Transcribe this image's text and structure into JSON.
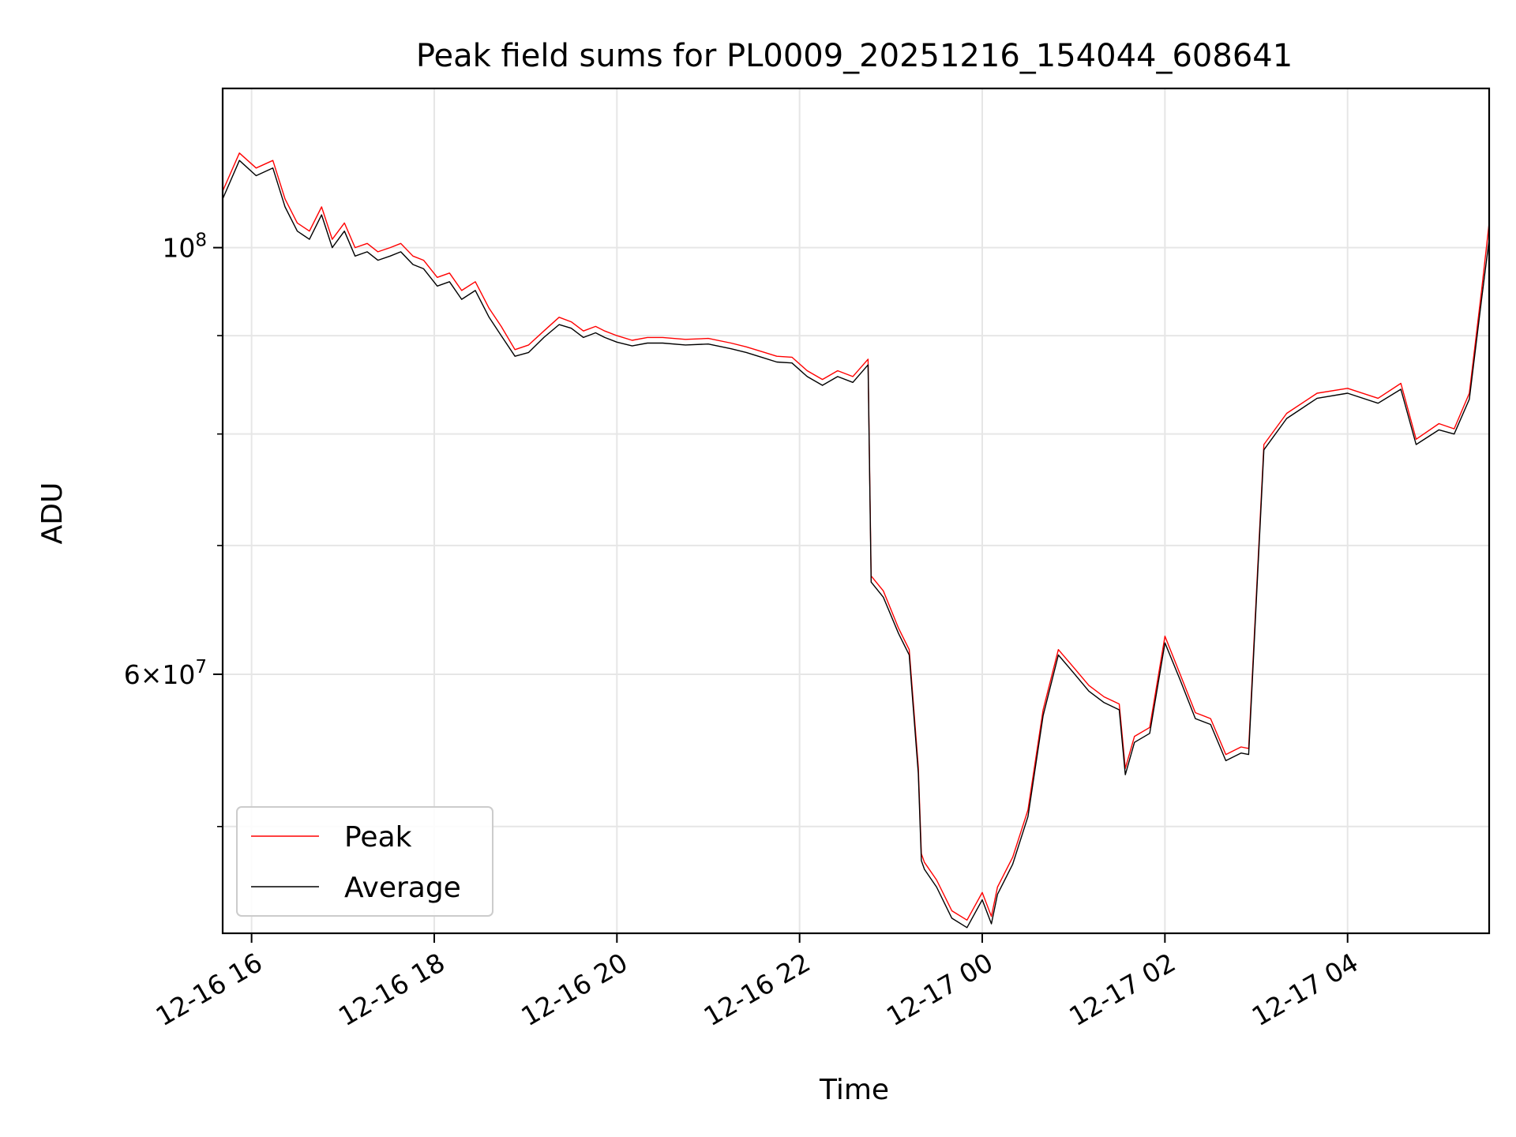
{
  "chart_data": {
    "type": "line",
    "title": "Peak field sums for PL0009_20251216_154044_608641",
    "xlabel": "Time",
    "ylabel": "ADU",
    "y_scale": "log",
    "ylim": [
      44000000,
      121000000
    ],
    "xlim": [
      "2025-12-16 15:41",
      "2025-12-17 05:33"
    ],
    "grid": true,
    "legend_position": "lower-left",
    "x_ticks": [
      {
        "value": "2025-12-16 16:00",
        "label": "12-16 16"
      },
      {
        "value": "2025-12-16 18:00",
        "label": "12-16 18"
      },
      {
        "value": "2025-12-16 20:00",
        "label": "12-16 20"
      },
      {
        "value": "2025-12-16 22:00",
        "label": "12-16 22"
      },
      {
        "value": "2025-12-17 00:00",
        "label": "12-17 00"
      },
      {
        "value": "2025-12-17 02:00",
        "label": "12-17 02"
      },
      {
        "value": "2025-12-17 04:00",
        "label": "12-17 04"
      }
    ],
    "y_major_ticks": [
      {
        "value": 60000000,
        "mantissa": "6",
        "exponent": "7"
      },
      {
        "value": 100000000,
        "mantissa": "",
        "exponent": "8"
      }
    ],
    "y_minor_ticks": [
      50000000,
      70000000,
      80000000,
      90000000
    ],
    "series": [
      {
        "name": "Peak",
        "color": "#ff0000",
        "x": [
          "2025-12-16 15:41",
          "2025-12-16 15:52",
          "2025-12-16 16:03",
          "2025-12-16 16:14",
          "2025-12-16 16:22",
          "2025-12-16 16:30",
          "2025-12-16 16:38",
          "2025-12-16 16:46",
          "2025-12-16 16:53",
          "2025-12-16 17:01",
          "2025-12-16 17:08",
          "2025-12-16 17:16",
          "2025-12-16 17:23",
          "2025-12-16 17:31",
          "2025-12-16 17:38",
          "2025-12-16 17:46",
          "2025-12-16 17:53",
          "2025-12-16 18:02",
          "2025-12-16 18:10",
          "2025-12-16 18:18",
          "2025-12-16 18:27",
          "2025-12-16 18:36",
          "2025-12-16 18:44",
          "2025-12-16 18:53",
          "2025-12-16 19:02",
          "2025-12-16 19:12",
          "2025-12-16 19:22",
          "2025-12-16 19:30",
          "2025-12-16 19:38",
          "2025-12-16 19:46",
          "2025-12-16 19:52",
          "2025-12-16 20:00",
          "2025-12-16 20:10",
          "2025-12-16 20:20",
          "2025-12-16 20:30",
          "2025-12-16 20:45",
          "2025-12-16 21:00",
          "2025-12-16 21:15",
          "2025-12-16 21:25",
          "2025-12-16 21:35",
          "2025-12-16 21:45",
          "2025-12-16 21:55",
          "2025-12-16 22:05",
          "2025-12-16 22:15",
          "2025-12-16 22:25",
          "2025-12-16 22:35",
          "2025-12-16 22:45",
          "2025-12-16 22:47",
          "2025-12-16 22:55",
          "2025-12-16 23:05",
          "2025-12-16 23:12",
          "2025-12-16 23:18",
          "2025-12-16 23:20",
          "2025-12-16 23:22",
          "2025-12-16 23:30",
          "2025-12-16 23:40",
          "2025-12-16 23:50",
          "2025-12-17 00:00",
          "2025-12-17 00:06",
          "2025-12-17 00:10",
          "2025-12-17 00:20",
          "2025-12-17 00:30",
          "2025-12-17 00:40",
          "2025-12-17 00:50",
          "2025-12-17 01:00",
          "2025-12-17 01:10",
          "2025-12-17 01:20",
          "2025-12-17 01:30",
          "2025-12-17 01:34",
          "2025-12-17 01:40",
          "2025-12-17 01:50",
          "2025-12-17 02:00",
          "2025-12-17 02:10",
          "2025-12-17 02:20",
          "2025-12-17 02:30",
          "2025-12-17 02:40",
          "2025-12-17 02:50",
          "2025-12-17 02:55",
          "2025-12-17 03:05",
          "2025-12-17 03:20",
          "2025-12-17 03:40",
          "2025-12-17 04:00",
          "2025-12-17 04:20",
          "2025-12-17 04:35",
          "2025-12-17 04:45",
          "2025-12-17 05:00",
          "2025-12-17 05:10",
          "2025-12-17 05:20",
          "2025-12-17 05:28",
          "2025-12-17 05:33"
        ],
        "y": [
          107000000,
          112000000,
          110000000,
          111000000,
          106000000,
          103000000,
          102000000,
          105000000,
          101000000,
          103000000,
          100000000,
          100500000,
          99500000,
          100000000,
          100500000,
          99000000,
          98500000,
          96500000,
          97000000,
          95000000,
          96000000,
          93000000,
          91000000,
          88500000,
          89000000,
          90500000,
          92000000,
          91500000,
          90500000,
          91000000,
          90500000,
          90000000,
          89500000,
          89800000,
          89800000,
          89600000,
          89700000,
          89200000,
          88800000,
          88300000,
          87800000,
          87700000,
          86300000,
          85400000,
          86300000,
          85700000,
          87500000,
          67500000,
          66300000,
          63400000,
          61800000,
          53700000,
          48400000,
          47900000,
          46900000,
          45200000,
          44700000,
          46200000,
          44900000,
          46500000,
          48200000,
          51000000,
          57500000,
          61800000,
          60500000,
          59200000,
          58400000,
          57900000,
          53600000,
          55700000,
          56300000,
          62800000,
          60000000,
          57300000,
          56900000,
          54500000,
          55000000,
          54900000,
          79000000,
          82000000,
          84000000,
          84500000,
          83500000,
          85000000,
          79500000,
          81000000,
          80500000,
          84000000,
          95000000,
          103000000
        ]
      },
      {
        "name": "Average",
        "color": "#000000",
        "x": [
          "2025-12-16 15:41",
          "2025-12-16 15:52",
          "2025-12-16 16:03",
          "2025-12-16 16:14",
          "2025-12-16 16:22",
          "2025-12-16 16:30",
          "2025-12-16 16:38",
          "2025-12-16 16:46",
          "2025-12-16 16:53",
          "2025-12-16 17:01",
          "2025-12-16 17:08",
          "2025-12-16 17:16",
          "2025-12-16 17:23",
          "2025-12-16 17:31",
          "2025-12-16 17:38",
          "2025-12-16 17:46",
          "2025-12-16 17:53",
          "2025-12-16 18:02",
          "2025-12-16 18:10",
          "2025-12-16 18:18",
          "2025-12-16 18:27",
          "2025-12-16 18:36",
          "2025-12-16 18:44",
          "2025-12-16 18:53",
          "2025-12-16 19:02",
          "2025-12-16 19:12",
          "2025-12-16 19:22",
          "2025-12-16 19:30",
          "2025-12-16 19:38",
          "2025-12-16 19:46",
          "2025-12-16 19:52",
          "2025-12-16 20:00",
          "2025-12-16 20:10",
          "2025-12-16 20:20",
          "2025-12-16 20:30",
          "2025-12-16 20:45",
          "2025-12-16 21:00",
          "2025-12-16 21:15",
          "2025-12-16 21:25",
          "2025-12-16 21:35",
          "2025-12-16 21:45",
          "2025-12-16 21:55",
          "2025-12-16 22:05",
          "2025-12-16 22:15",
          "2025-12-16 22:25",
          "2025-12-16 22:35",
          "2025-12-16 22:45",
          "2025-12-16 22:47",
          "2025-12-16 22:55",
          "2025-12-16 23:05",
          "2025-12-16 23:12",
          "2025-12-16 23:18",
          "2025-12-16 23:20",
          "2025-12-16 23:22",
          "2025-12-16 23:30",
          "2025-12-16 23:40",
          "2025-12-16 23:50",
          "2025-12-17 00:00",
          "2025-12-17 00:06",
          "2025-12-17 00:10",
          "2025-12-17 00:20",
          "2025-12-17 00:30",
          "2025-12-17 00:40",
          "2025-12-17 00:50",
          "2025-12-17 01:00",
          "2025-12-17 01:10",
          "2025-12-17 01:20",
          "2025-12-17 01:30",
          "2025-12-17 01:34",
          "2025-12-17 01:40",
          "2025-12-17 01:50",
          "2025-12-17 02:00",
          "2025-12-17 02:10",
          "2025-12-17 02:20",
          "2025-12-17 02:30",
          "2025-12-17 02:40",
          "2025-12-17 02:50",
          "2025-12-17 02:55",
          "2025-12-17 03:05",
          "2025-12-17 03:20",
          "2025-12-17 03:40",
          "2025-12-17 04:00",
          "2025-12-17 04:20",
          "2025-12-17 04:35",
          "2025-12-17 04:45",
          "2025-12-17 05:00",
          "2025-12-17 05:10",
          "2025-12-17 05:20",
          "2025-12-17 05:28",
          "2025-12-17 05:33"
        ],
        "y": [
          106000000,
          111000000,
          109000000,
          110000000,
          105000000,
          102000000,
          101000000,
          104000000,
          100000000,
          102000000,
          99000000,
          99500000,
          98500000,
          99000000,
          99500000,
          98000000,
          97500000,
          95500000,
          96000000,
          94000000,
          95000000,
          92000000,
          90000000,
          87800000,
          88200000,
          89800000,
          91200000,
          90800000,
          89800000,
          90300000,
          89800000,
          89300000,
          88900000,
          89200000,
          89200000,
          89000000,
          89100000,
          88600000,
          88200000,
          87700000,
          87200000,
          87100000,
          85700000,
          84800000,
          85700000,
          85100000,
          86900000,
          67000000,
          65800000,
          63000000,
          61400000,
          53300000,
          48000000,
          47500000,
          46500000,
          44800000,
          44300000,
          45800000,
          44500000,
          46100000,
          47800000,
          50600000,
          57100000,
          61400000,
          60100000,
          58800000,
          58000000,
          57500000,
          53200000,
          55300000,
          55900000,
          62300000,
          59600000,
          56900000,
          56500000,
          54100000,
          54600000,
          54500000,
          78500000,
          81500000,
          83500000,
          84000000,
          83000000,
          84400000,
          79000000,
          80400000,
          80000000,
          83400000,
          94000000,
          101000000
        ]
      }
    ]
  }
}
